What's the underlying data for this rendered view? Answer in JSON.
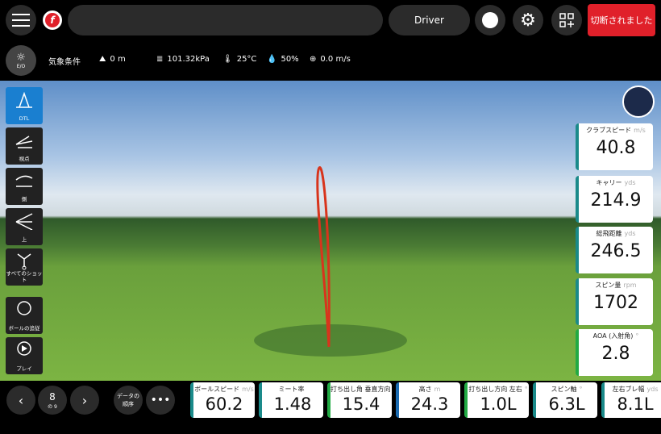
{
  "top": {
    "club": "Driver",
    "disconnect_label": "切断されました",
    "accent": "#e0202a"
  },
  "weather": {
    "label": "気象条件",
    "badge": "E/O",
    "altitude": "0 m",
    "pressure": "101.32kPa",
    "temperature": "25°C",
    "humidity": "50%",
    "wind": "0.0 m/s"
  },
  "sidebar": [
    {
      "label": "DTL",
      "active": true
    },
    {
      "label": "視点"
    },
    {
      "label": "側"
    },
    {
      "label": "上"
    },
    {
      "label": "すべてのショット"
    },
    {
      "label": "ボールの追従"
    },
    {
      "label": "プレイ"
    }
  ],
  "right_metrics": [
    {
      "label": "クラブスピード",
      "unit": "m/s",
      "value": "40.8",
      "color": "#1a8a8a"
    },
    {
      "label": "キャリー",
      "unit": "yds",
      "value": "214.9",
      "color": "#1a8a8a"
    },
    {
      "label": "総飛距離",
      "unit": "yds",
      "value": "246.5",
      "color": "#1a8a8a"
    },
    {
      "label": "スピン量",
      "unit": "rpm",
      "value": "1702",
      "color": "#1a8a8a"
    },
    {
      "label": "AOA (入射角)",
      "unit": "°",
      "value": "2.8",
      "color": "#22aa44"
    }
  ],
  "bottom_metrics": [
    {
      "label": "ボールスピード",
      "unit": "m/s",
      "value": "60.2",
      "color": "#1a8a8a"
    },
    {
      "label": "ミート率",
      "unit": "",
      "value": "1.48",
      "color": "#1a8a8a"
    },
    {
      "label": "打ち出し角 垂直方向",
      "unit": "°",
      "value": "15.4",
      "color": "#22aa44"
    },
    {
      "label": "高さ",
      "unit": "m",
      "value": "24.3",
      "color": "#1a6ab0"
    },
    {
      "label": "打ち出し方向 左右",
      "unit": "°",
      "value": "1.0L",
      "color": "#22aa44"
    },
    {
      "label": "スピン軸",
      "unit": "°",
      "value": "6.3L",
      "color": "#1a8a8a"
    },
    {
      "label": "左右ブレ幅",
      "unit": "yds",
      "value": "8.1L",
      "color": "#1a8a8a"
    }
  ],
  "nav": {
    "shot": "8",
    "of": "の 9",
    "order_label": "データの順序"
  }
}
